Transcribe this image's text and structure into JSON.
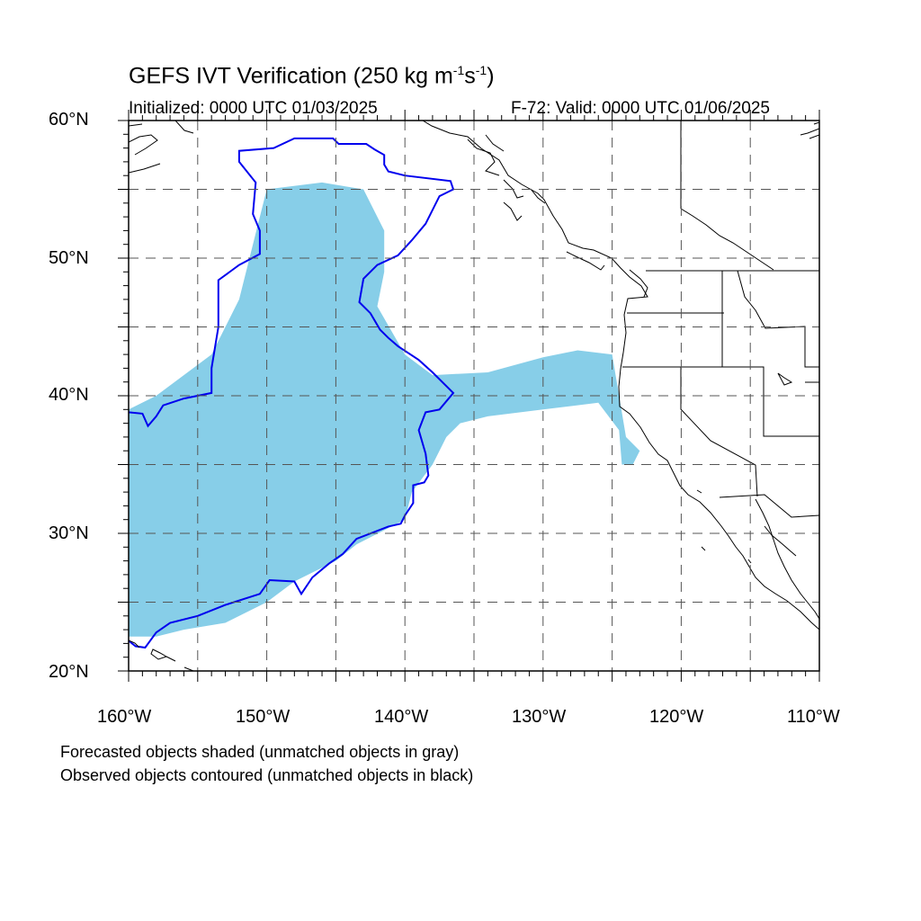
{
  "title": {
    "main": "GEFS IVT Verification (250 kg m",
    "exp1": "-1",
    "mid": "s",
    "exp2": "-1",
    "close": ")"
  },
  "subtitle_left": "Initialized: 0000 UTC 01/03/2025",
  "subtitle_right": "F-72: Valid: 0000 UTC 01/06/2025",
  "footnote_1": "Forecasted objects shaded (unmatched objects in gray)",
  "footnote_2": "Observed objects contoured (unmatched objects in black)",
  "lat_labels": [
    "60°N",
    "50°N",
    "40°N",
    "30°N",
    "20°N"
  ],
  "lon_labels": [
    "160°W",
    "150°W",
    "140°W",
    "130°W",
    "120°W",
    "110°W"
  ],
  "colors": {
    "forecast_fill": "#87CEE8",
    "observed_contour": "#0000EE",
    "coastline": "#000000",
    "grid": "#555555"
  },
  "chart_data": {
    "type": "map",
    "projection": "cylindrical equidistant",
    "lon_range": [
      -160,
      -110
    ],
    "lat_range": [
      20,
      60
    ],
    "grid_lons": [
      -155,
      -150,
      -145,
      -140,
      -135,
      -130,
      -125,
      -120,
      -115
    ],
    "grid_lats": [
      25,
      30,
      35,
      40,
      45,
      50,
      55
    ],
    "forecast_object": {
      "legend": "Forecasted objects shaded",
      "outline": [
        [
          -160,
          39
        ],
        [
          -158,
          40
        ],
        [
          -154,
          43
        ],
        [
          -152,
          47
        ],
        [
          -151,
          51
        ],
        [
          -150,
          55
        ],
        [
          -146,
          55.5
        ],
        [
          -143,
          55
        ],
        [
          -141.5,
          52
        ],
        [
          -141.5,
          49
        ],
        [
          -142,
          46.5
        ],
        [
          -140,
          43
        ],
        [
          -138,
          41.5
        ],
        [
          -134,
          41.7
        ],
        [
          -130,
          42.8
        ],
        [
          -127.5,
          43.3
        ],
        [
          -125,
          43
        ],
        [
          -124.5,
          40
        ],
        [
          -124,
          37
        ],
        [
          -123,
          36
        ],
        [
          -123.5,
          35
        ],
        [
          -124.3,
          35
        ],
        [
          -124.5,
          37.5
        ],
        [
          -126,
          39.5
        ],
        [
          -130,
          39
        ],
        [
          -134,
          38.5
        ],
        [
          -136,
          38
        ],
        [
          -137,
          37
        ],
        [
          -138,
          35
        ],
        [
          -139.5,
          33
        ],
        [
          -140,
          31
        ],
        [
          -143.5,
          29.2
        ],
        [
          -145,
          28
        ],
        [
          -148,
          26.5
        ],
        [
          -150,
          25
        ],
        [
          -153,
          23.5
        ],
        [
          -156,
          23
        ],
        [
          -158,
          22.5
        ],
        [
          -160,
          22.5
        ]
      ]
    },
    "observed_object": {
      "legend": "Observed objects contoured",
      "outline": [
        [
          -160,
          38.8
        ],
        [
          -159,
          38.7
        ],
        [
          -158.6,
          37.8
        ],
        [
          -158,
          38.5
        ],
        [
          -157.5,
          39.3
        ],
        [
          -156,
          39.8
        ],
        [
          -154,
          40.2
        ],
        [
          -154,
          42
        ],
        [
          -153.5,
          45
        ],
        [
          -153.5,
          48.4
        ],
        [
          -152,
          49.5
        ],
        [
          -150.5,
          50.3
        ],
        [
          -150.5,
          52
        ],
        [
          -151,
          53.2
        ],
        [
          -150.8,
          55.5
        ],
        [
          -152,
          57
        ],
        [
          -152,
          57.8
        ],
        [
          -149.5,
          58
        ],
        [
          -148,
          58.7
        ],
        [
          -145.2,
          58.7
        ],
        [
          -144.8,
          58.3
        ],
        [
          -142.8,
          58.3
        ],
        [
          -142.2,
          57.9
        ],
        [
          -141.5,
          57.5
        ],
        [
          -141.5,
          56.8
        ],
        [
          -141.2,
          56.3
        ],
        [
          -140,
          56
        ],
        [
          -136.7,
          55.6
        ],
        [
          -136.5,
          55
        ],
        [
          -137.5,
          54.5
        ],
        [
          -138.5,
          52.5
        ],
        [
          -139.5,
          51.3
        ],
        [
          -140.5,
          50.2
        ],
        [
          -142,
          49.5
        ],
        [
          -143,
          48.5
        ],
        [
          -143.3,
          46.8
        ],
        [
          -142.5,
          46
        ],
        [
          -141.8,
          44.8
        ],
        [
          -141.2,
          44.2
        ],
        [
          -140.5,
          43.6
        ],
        [
          -139,
          42.6
        ],
        [
          -138,
          41.7
        ],
        [
          -136.5,
          40.2
        ],
        [
          -137.5,
          39
        ],
        [
          -138.5,
          38.8
        ],
        [
          -139,
          37.5
        ],
        [
          -138.5,
          35.8
        ],
        [
          -138.3,
          34.2
        ],
        [
          -138.6,
          33.7
        ],
        [
          -139.4,
          33.5
        ],
        [
          -139.4,
          32.2
        ],
        [
          -140,
          31.3
        ],
        [
          -140.3,
          30.7
        ],
        [
          -141.2,
          30.5
        ],
        [
          -143.5,
          29.6
        ],
        [
          -144.5,
          28.5
        ],
        [
          -145.5,
          27.8
        ],
        [
          -146.7,
          26.8
        ],
        [
          -147.5,
          25.6
        ],
        [
          -148,
          26.5
        ],
        [
          -149.8,
          26.6
        ],
        [
          -150.5,
          25.6
        ],
        [
          -153,
          24.8
        ],
        [
          -155,
          24
        ],
        [
          -157,
          23.5
        ],
        [
          -158,
          22.8
        ],
        [
          -158.8,
          21.7
        ],
        [
          -159.5,
          21.8
        ],
        [
          -160,
          22.2
        ]
      ]
    }
  }
}
